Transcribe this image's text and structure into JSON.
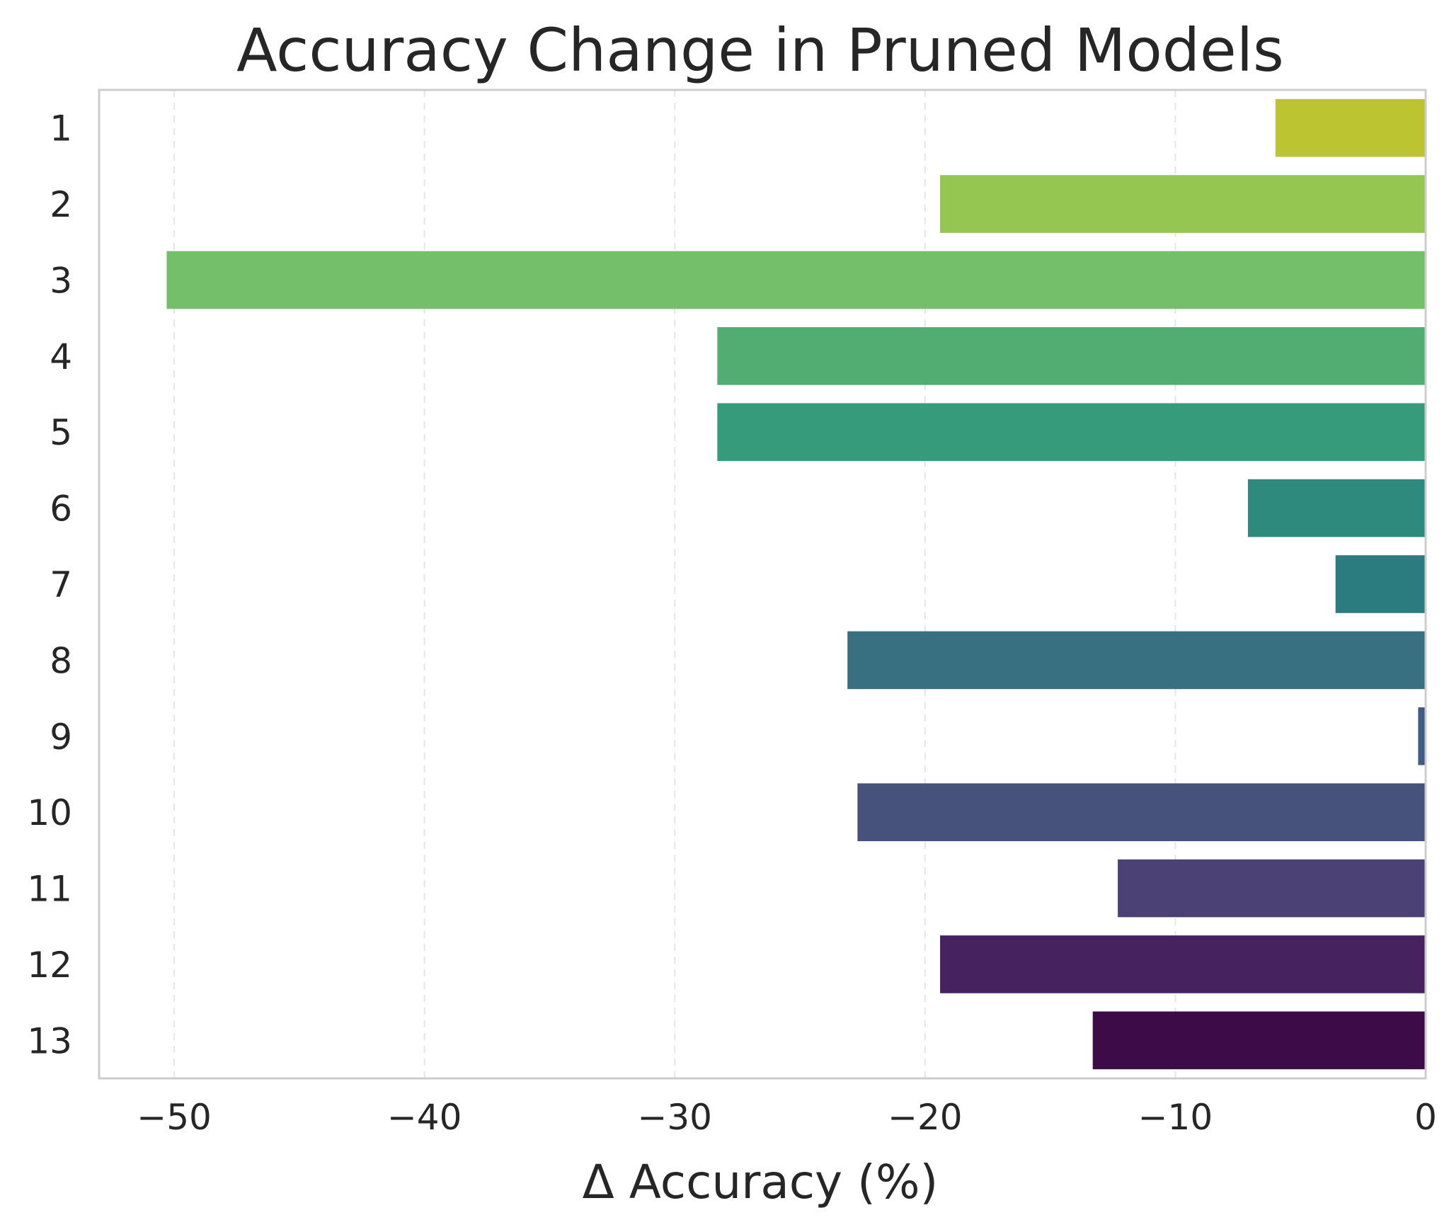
{
  "chart_data": {
    "type": "bar",
    "orientation": "horizontal",
    "title": "Accuracy Change in Pruned Models",
    "xlabel": "Δ Accuracy (%)",
    "ylabel": "",
    "categories": [
      "1",
      "2",
      "3",
      "4",
      "5",
      "6",
      "7",
      "8",
      "9",
      "10",
      "11",
      "12",
      "13"
    ],
    "values": [
      -6.0,
      -19.4,
      -50.3,
      -28.3,
      -28.3,
      -7.1,
      -3.6,
      -23.1,
      -0.3,
      -22.7,
      -12.3,
      -19.4,
      -13.3
    ],
    "colors": [
      "#bcc531",
      "#95c651",
      "#74bf6a",
      "#52ad73",
      "#369b7b",
      "#2d8a7c",
      "#2a7c7f",
      "#386f81",
      "#3f5c83",
      "#46517c",
      "#4b4174",
      "#46235e",
      "#3e0b49"
    ],
    "xlim": [
      -53,
      0
    ],
    "xticks": [
      -50,
      -40,
      -30,
      -20,
      -10,
      0
    ],
    "xtick_labels": [
      "−50",
      "−40",
      "−30",
      "−20",
      "−10",
      "0"
    ],
    "grid": "vertical dashed",
    "legend": "none"
  }
}
